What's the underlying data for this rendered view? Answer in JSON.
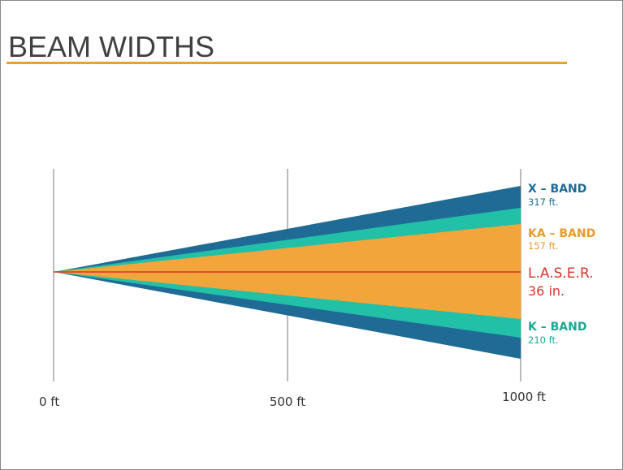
{
  "header": {
    "title": "BEAM WIDTHS"
  },
  "bands": [
    {
      "name": "X – BAND",
      "width": "317 ft."
    },
    {
      "name": "KA – BAND",
      "width": "157 ft."
    },
    {
      "name": "L.A.S.E.R.",
      "width": "36 in."
    },
    {
      "name": "K – BAND",
      "width": "210 ft."
    }
  ],
  "axis": [
    "0 ft",
    "500 ft",
    "1000 ft"
  ]
}
